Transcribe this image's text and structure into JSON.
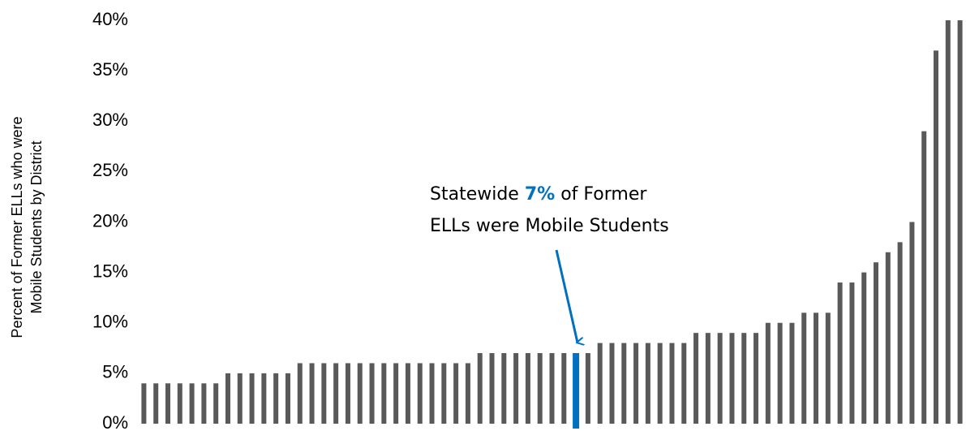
{
  "chart_data": {
    "type": "bar",
    "ylabel": [
      "Percent of Former ELLs who were",
      "Mobile Students by District"
    ],
    "categories": [
      null,
      null,
      null,
      null,
      null,
      null,
      null,
      null,
      null,
      null,
      null,
      null,
      null,
      null,
      null,
      null,
      null,
      null,
      null,
      null,
      null,
      null,
      null,
      null,
      null,
      null,
      null,
      null,
      null,
      null,
      null,
      null,
      null,
      null,
      null,
      null,
      null,
      null,
      null,
      null,
      null,
      null,
      null,
      null,
      null,
      null,
      null,
      null,
      null,
      null,
      null,
      null,
      null,
      null,
      null,
      null,
      null,
      null,
      null,
      null,
      null,
      null,
      null,
      null,
      null,
      null,
      null,
      null,
      null
    ],
    "values": [
      4,
      4,
      4,
      4,
      4,
      4,
      4,
      5,
      5,
      5,
      5,
      5,
      5,
      6,
      6,
      6,
      6,
      6,
      6,
      6,
      6,
      6,
      6,
      6,
      6,
      6,
      6,
      6,
      7,
      7,
      7,
      7,
      7,
      7,
      7,
      7,
      7,
      7,
      8,
      8,
      8,
      8,
      8,
      8,
      8,
      8,
      9,
      9,
      9,
      9,
      9,
      9,
      10,
      10,
      10,
      11,
      11,
      11,
      14,
      14,
      15,
      16,
      17,
      18,
      20,
      29,
      37,
      40,
      40
    ],
    "color": "#595959",
    "highlight": {
      "index": 36,
      "color": "#0070c0"
    },
    "ylim": [
      0,
      40
    ],
    "yticks": [
      {
        "value": 0,
        "label": "0%"
      },
      {
        "value": 5,
        "label": "5%"
      },
      {
        "value": 10,
        "label": "10%"
      },
      {
        "value": 15,
        "label": "15%"
      },
      {
        "value": 20,
        "label": "20%"
      },
      {
        "value": 25,
        "label": "25%"
      },
      {
        "value": 30,
        "label": "30%"
      },
      {
        "value": 35,
        "label": "35%"
      },
      {
        "value": 40,
        "label": "40%"
      }
    ],
    "grid": false,
    "annotation": {
      "before": "Statewide",
      "emphasis": "7%",
      "after": "of Former",
      "line2": "ELLs were Mobile Students"
    }
  }
}
